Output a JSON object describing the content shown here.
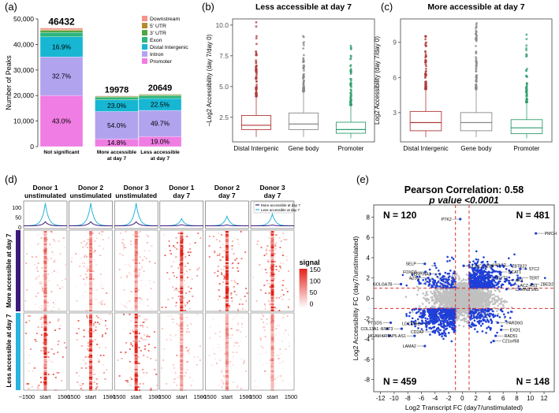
{
  "colors": {
    "downstream": "#f4938a",
    "utr5": "#b58a2c",
    "utr3": "#52a447",
    "exon": "#2bb67d",
    "distal": "#17b6d3",
    "intron": "#b2a3ef",
    "promoter": "#ef7de3",
    "red": "#b03a3a",
    "grey": "#888",
    "green": "#2f9e6e",
    "heat": "#e2231a",
    "blue": "#1f3fd8",
    "cyan": "#29b3df",
    "purple": "#3b1a7a"
  },
  "chart_data": [
    {
      "type": "bar",
      "panel": "(a)",
      "ylabel": "Number of Peaks",
      "ylim": [
        0,
        50000
      ],
      "yticks": [
        "0",
        "10,000",
        "20,000",
        "30,000",
        "40,000",
        "50,000"
      ],
      "categories": [
        "Not significant",
        "More accessible\nat day 7",
        "Less accessible\nat day 7"
      ],
      "totals": [
        "46432",
        "19978",
        "20649"
      ],
      "legend": [
        "Downstream",
        "5' UTR",
        "3' UTR",
        "Exon",
        "Distal Intergenic",
        "Intron",
        "Promoter"
      ],
      "series": [
        {
          "name": "Promoter",
          "values": [
            43.0,
            14.8,
            19.0
          ],
          "labels": [
            "43.0%",
            "14.8%",
            "19.0%"
          ]
        },
        {
          "name": "Intron",
          "values": [
            32.7,
            54.0,
            49.7
          ],
          "labels": [
            "32.7%",
            "54.0%",
            "49.7%"
          ]
        },
        {
          "name": "Distal Intergenic",
          "values": [
            16.9,
            23.0,
            22.5
          ],
          "labels": [
            "16.9%",
            "23.0%",
            "22.5%"
          ]
        },
        {
          "name": "Exon",
          "values": [
            3.7,
            4.5,
            5.0
          ],
          "labels": [
            "",
            "",
            ""
          ]
        },
        {
          "name": "3' UTR",
          "values": [
            1.6,
            1.9,
            2.1
          ],
          "labels": [
            "",
            "",
            ""
          ]
        },
        {
          "name": "5' UTR",
          "values": [
            0.8,
            0.9,
            0.9
          ],
          "labels": [
            "",
            "",
            ""
          ]
        },
        {
          "name": "Downstream",
          "values": [
            1.3,
            0.9,
            0.8
          ],
          "labels": [
            "",
            "",
            ""
          ]
        }
      ]
    },
    {
      "type": "box",
      "panel": "(b)",
      "title": "Less accessible at day 7",
      "ylabel": "−Log2 Accessibility (day 7/day 0)",
      "ylim": [
        0.5,
        10.5
      ],
      "yticks": [
        "2.5",
        "5.0",
        "7.5",
        "10.0"
      ],
      "categories": [
        "Distal Intergenic",
        "Gene body",
        "Promoter"
      ],
      "boxes": [
        {
          "q1": 1.5,
          "med": 1.85,
          "q3": 2.65,
          "lo": 0.9,
          "hi": 4.2,
          "outmax": 10.3
        },
        {
          "q1": 1.5,
          "med": 1.95,
          "q3": 2.85,
          "lo": 0.9,
          "hi": 4.6,
          "outmax": 9.4
        },
        {
          "q1": 1.2,
          "med": 1.5,
          "q3": 2.1,
          "lo": 0.8,
          "hi": 3.5,
          "outmax": 8.4
        }
      ]
    },
    {
      "type": "box",
      "panel": "(c)",
      "title": "More accessible at day 7",
      "ylabel": "Log2 Accessibility (day 7/day 0)",
      "ylim": [
        0.5,
        11
      ],
      "yticks": [
        "3",
        "6",
        "9"
      ],
      "categories": [
        "Distal Intergenic",
        "Gene body",
        "Promoter"
      ],
      "boxes": [
        {
          "q1": 1.45,
          "med": 2.15,
          "q3": 3.1,
          "lo": 0.9,
          "hi": 5.0,
          "outmax": 10.0
        },
        {
          "q1": 1.45,
          "med": 2.15,
          "q3": 3.0,
          "lo": 0.9,
          "hi": 5.0,
          "outmax": 10.8
        },
        {
          "q1": 1.2,
          "med": 1.7,
          "q3": 2.4,
          "lo": 0.8,
          "hi": 3.9,
          "outmax": 10.0
        }
      ]
    },
    {
      "type": "heatmap",
      "panel": "(d)",
      "columns": [
        "Donor 1\nunstimulated",
        "Donor 2\nunstimulated",
        "Donor 3\nunstimulated",
        "Donor 1\nday 7",
        "Donor 2\nday 7",
        "Donor 3\nday 7"
      ],
      "profile_peaks_more": [
        1.0,
        1.0,
        1.0,
        0.32,
        0.42,
        0.52
      ],
      "profile_peaks_less": [
        0.9,
        0.9,
        0.9,
        0.26,
        0.2,
        0.18
      ],
      "profile_yticks": [
        "0",
        "50",
        "100"
      ],
      "legend": [
        "More accessible at day 7",
        "Less accessible at day 7"
      ],
      "row_groups": [
        "More accessible at day 7",
        "Less accessible at day 7"
      ],
      "xticks": [
        "−1500",
        "start",
        "1500"
      ],
      "colorbar_title": "signal",
      "colorbar_ticks": [
        "150",
        "100",
        "50",
        "0"
      ]
    },
    {
      "type": "scatter",
      "panel": "(e)",
      "title": "Pearson Correlation: 0.58",
      "subtitle": "p value <0.0001",
      "xlabel": "Log2 Transcript FC (day7/unstimulated)",
      "ylabel": "Log2 Accessibility FC (day7/unstimulated)",
      "xlim": [
        -13,
        13.5
      ],
      "ylim": [
        -9.2,
        9.2
      ],
      "xticks": [
        "-12",
        "-10",
        "-8",
        "-6",
        "-4",
        "-2",
        "0",
        "2",
        "4",
        "6",
        "8",
        "10",
        "12"
      ],
      "yticks": [
        "-8",
        "-6",
        "-4",
        "-2",
        "0",
        "2",
        "4",
        "6",
        "8"
      ],
      "thresholds": {
        "x": [
          -1,
          1
        ],
        "y": [
          -1,
          1
        ]
      },
      "quadrant_counts": [
        "N = 120",
        "N = 481",
        "N = 459",
        "N = 148"
      ],
      "genes": [
        {
          "name": "PTK2",
          "x": -0.3,
          "y": 7.8
        },
        {
          "name": "PMCH",
          "x": 10.8,
          "y": 6.4
        },
        {
          "name": "SELP",
          "x": -5.5,
          "y": 3.4
        },
        {
          "name": "LINC00158",
          "x": 0.2,
          "y": 3.2
        },
        {
          "name": "HHLA2",
          "x": 3.2,
          "y": 3.3
        },
        {
          "name": "ZBTB22",
          "x": 6.0,
          "y": 3.2
        },
        {
          "name": "STC2",
          "x": 8.5,
          "y": 2.9
        },
        {
          "name": "FOXO3",
          "x": -5.4,
          "y": 2.6
        },
        {
          "name": "BCAT1",
          "x": 5.5,
          "y": 2.6
        },
        {
          "name": "TERT",
          "x": 8.5,
          "y": 2.0
        },
        {
          "name": "A2SS",
          "x": -5.0,
          "y": 2.0
        },
        {
          "name": "SERPINA1",
          "x": -3.3,
          "y": 2.4
        },
        {
          "name": "ESYT2",
          "x": 3.5,
          "y": 2.0
        },
        {
          "name": "AK4",
          "x": 6.5,
          "y": 1.8
        },
        {
          "name": "ZBED2",
          "x": 10.2,
          "y": 1.4
        },
        {
          "name": "GOLGA7B",
          "x": -9.0,
          "y": 1.4
        },
        {
          "name": "ACZ-AS1",
          "x": 7.2,
          "y": 1.3
        },
        {
          "name": "CAVIN2",
          "x": 6.5,
          "y": 0.9
        },
        {
          "name": "TSN5",
          "x": 8.4,
          "y": 0.9
        },
        {
          "name": "PTGDS",
          "x": -10.5,
          "y": -2.4
        },
        {
          "name": "LOC1",
          "x": -6.0,
          "y": -2.5
        },
        {
          "name": "LY6E",
          "x": -4.9,
          "y": -2.5
        },
        {
          "name": "COL13A1",
          "x": -11.0,
          "y": -3.0
        },
        {
          "name": "STAT3",
          "x": -8.9,
          "y": -3.0
        },
        {
          "name": "CD2AP",
          "x": -4.3,
          "y": -3.3
        },
        {
          "name": "PARD6G",
          "x": 5.2,
          "y": -2.4
        },
        {
          "name": "EXD1",
          "x": 5.7,
          "y": -3.1
        },
        {
          "name": "MGAM",
          "x": -10.7,
          "y": -3.7
        },
        {
          "name": "KRTAP5-AS1",
          "x": -7.0,
          "y": -3.7
        },
        {
          "name": "RAD51",
          "x": 4.9,
          "y": -3.7
        },
        {
          "name": "C21orf58",
          "x": 4.6,
          "y": -4.2
        },
        {
          "name": "LAMA2",
          "x": -5.5,
          "y": -4.7
        }
      ]
    }
  ],
  "panel_labels": [
    "(a)",
    "(b)",
    "(c)",
    "(d)",
    "(e)"
  ]
}
